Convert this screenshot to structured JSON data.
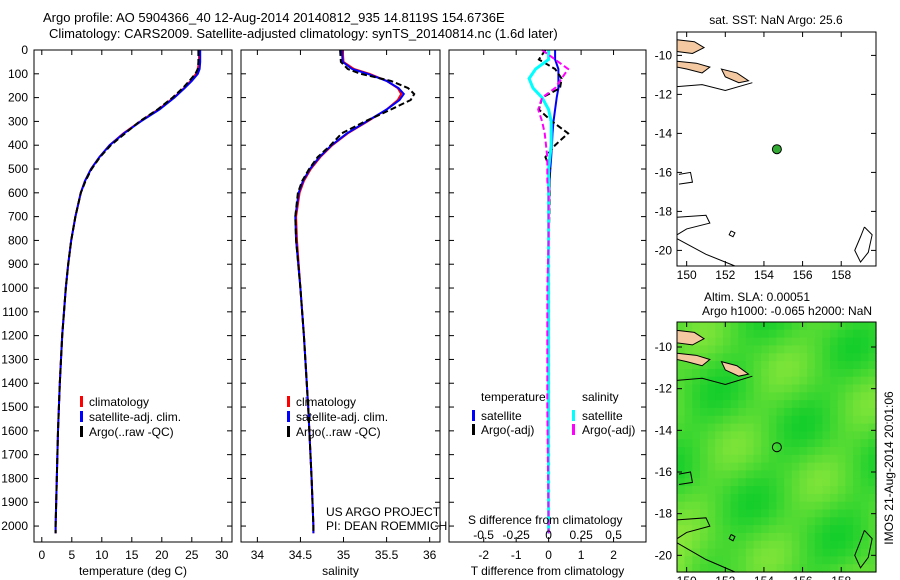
{
  "title": {
    "line1": "Argo profile: AO 5904366_40 12-Aug-2014 20140812_935 14.8119S 154.6736E",
    "line2": "Climatology: CARS2009. Satellite-adjusted climatology: synTS_20140814.nc (1.6d later)"
  },
  "colors": {
    "climatology": "#ff0000",
    "satellite_temp": "#0000ff",
    "argo": "#000000",
    "satellite_sal": "#00ffff",
    "argo_sal": "#ff00ff",
    "land": "#f4c8a0",
    "sla_low": "#0ccc2a",
    "sla_high": "#b8f040"
  },
  "chart_data": [
    {
      "type": "line",
      "id": "temperature",
      "xlabel": "temperature (deg C)",
      "ylabel": "depth",
      "xlim": [
        -1.3,
        31.7
      ],
      "ylim": [
        2067,
        0
      ],
      "xticks": [
        0,
        5,
        10,
        15,
        20,
        25,
        30
      ],
      "yticks": [
        0,
        100,
        200,
        300,
        400,
        500,
        600,
        700,
        800,
        900,
        1000,
        1100,
        1200,
        1300,
        1400,
        1500,
        1600,
        1700,
        1800,
        1900,
        2000
      ],
      "legend": [
        "climatology",
        "satellite-adj. clim.",
        "Argo(..raw -QC)"
      ],
      "depth": [
        0,
        50,
        80,
        100,
        130,
        160,
        200,
        250,
        300,
        350,
        400,
        450,
        500,
        550,
        600,
        700,
        800,
        900,
        1000,
        1200,
        1400,
        1600,
        1800,
        2000,
        2030
      ],
      "series": [
        {
          "name": "climatology",
          "values": [
            26.2,
            26.2,
            26.0,
            25.7,
            24.8,
            23.7,
            22.0,
            19.4,
            16.4,
            13.6,
            11.3,
            9.6,
            8.2,
            7.2,
            6.5,
            5.6,
            4.9,
            4.4,
            4.0,
            3.4,
            3.0,
            2.7,
            2.5,
            2.3,
            2.3
          ]
        },
        {
          "name": "satellite-adj. clim.",
          "values": [
            26.4,
            26.4,
            26.3,
            26.0,
            25.0,
            23.8,
            22.1,
            19.6,
            16.5,
            13.7,
            11.3,
            9.6,
            8.2,
            7.2,
            6.5,
            5.6,
            4.9,
            4.4,
            4.0,
            3.4,
            3.0,
            2.7,
            2.5,
            2.3,
            2.3
          ]
        },
        {
          "name": "Argo(..raw -QC)",
          "values": [
            26.1,
            26.1,
            26.0,
            25.6,
            24.6,
            23.5,
            21.8,
            19.3,
            16.3,
            13.9,
            11.5,
            9.7,
            8.3,
            7.3,
            6.5,
            5.6,
            4.9,
            4.4,
            4.0,
            3.4,
            3.0,
            2.7,
            2.5,
            2.3,
            2.3
          ]
        }
      ]
    },
    {
      "type": "line",
      "id": "salinity",
      "xlabel": "salinity",
      "xlim": [
        33.81,
        36.12
      ],
      "ylim": [
        2067,
        0
      ],
      "xticks": [
        34,
        34.5,
        35,
        35.5,
        36
      ],
      "xticklabels": [
        "34",
        "34.5",
        "35",
        "35.5",
        "36"
      ],
      "legend": [
        "climatology",
        "satellite-adj. clim.",
        "Argo(..raw -QC)"
      ],
      "annotation": [
        "US ARGO PROJECT",
        "PI: DEAN ROEMMICH"
      ],
      "depth": [
        0,
        50,
        80,
        100,
        130,
        160,
        185,
        210,
        250,
        300,
        350,
        400,
        450,
        500,
        550,
        600,
        700,
        800,
        1000,
        1200,
        1500,
        1800,
        2000,
        2030
      ],
      "series": [
        {
          "name": "climatology",
          "values": [
            34.99,
            35.0,
            35.12,
            35.3,
            35.5,
            35.63,
            35.67,
            35.63,
            35.5,
            35.28,
            35.05,
            34.87,
            34.73,
            34.62,
            34.54,
            34.49,
            34.45,
            34.46,
            34.5,
            34.54,
            34.59,
            34.63,
            34.65,
            34.65
          ]
        },
        {
          "name": "satellite-adj. clim.",
          "values": [
            34.98,
            34.99,
            35.1,
            35.28,
            35.5,
            35.64,
            35.7,
            35.65,
            35.5,
            35.27,
            35.04,
            34.86,
            34.72,
            34.61,
            34.53,
            34.48,
            34.44,
            34.45,
            34.5,
            34.54,
            34.59,
            34.63,
            34.65,
            34.65
          ]
        },
        {
          "name": "Argo(..raw -QC)",
          "values": [
            34.96,
            34.97,
            35.05,
            35.2,
            35.55,
            35.75,
            35.82,
            35.78,
            35.55,
            35.25,
            34.98,
            34.85,
            34.7,
            34.6,
            34.52,
            34.47,
            34.44,
            34.45,
            34.5,
            34.54,
            34.59,
            34.63,
            34.65,
            34.65
          ]
        }
      ]
    },
    {
      "type": "line",
      "id": "difference",
      "xlabel": "T difference from climatology",
      "xlabel2": "S difference from climatology",
      "xlim": [
        -3.07,
        3.0
      ],
      "ylim": [
        2067,
        0
      ],
      "xticks": [
        -2,
        -1,
        0,
        1,
        2
      ],
      "xticklabels": [
        "-2",
        "-1",
        "0",
        "1",
        "2"
      ],
      "sticks": [
        -0.5,
        -0.25,
        0,
        0.25,
        0.5
      ],
      "sticklabels": [
        "-0.5",
        "-0.25",
        "0",
        "0.25",
        "0.5"
      ],
      "legend": {
        "temperature_header": "temperature",
        "salinity_header": "salinity",
        "temp_items": [
          "satellite",
          "Argo(-adj)"
        ],
        "sal_items": [
          "satellite",
          "Argo(-adj)"
        ]
      },
      "depth": [
        0,
        40,
        80,
        120,
        160,
        200,
        250,
        300,
        350,
        400,
        450,
        500,
        550,
        600,
        700,
        800,
        1000,
        1500,
        2000,
        2030
      ],
      "series": [
        {
          "name": "temperature satellite",
          "values": [
            0.2,
            0.2,
            0.3,
            0.3,
            0.3,
            0.25,
            0.2,
            0.15,
            0.12,
            0.1,
            0.08,
            0.05,
            0.03,
            0.02,
            0.01,
            0.01,
            0.0,
            0.0,
            0.0,
            0.0
          ]
        },
        {
          "name": "temperature Argo(-adj)",
          "values": [
            -0.1,
            -0.3,
            0.2,
            0.4,
            0.35,
            -0.2,
            -0.3,
            0.1,
            0.6,
            0.2,
            -0.1,
            0.05,
            0.02,
            0.03,
            0.02,
            0.0,
            0.0,
            0.0,
            0.0,
            0.0
          ]
        },
        {
          "name": "salinity satellite",
          "values": [
            0.0,
            0.0,
            -0.1,
            -0.15,
            -0.12,
            -0.05,
            0.0,
            0.02,
            0.02,
            0.02,
            0.01,
            0.0,
            0.0,
            0.0,
            0.0,
            0.0,
            0.0,
            0.0,
            0.0,
            0.0
          ]
        },
        {
          "name": "salinity Argo(-adj)",
          "values": [
            -0.05,
            0.05,
            0.15,
            0.1,
            0.05,
            -0.05,
            -0.08,
            -0.05,
            -0.03,
            -0.02,
            -0.01,
            -0.01,
            -0.01,
            0.0,
            0.0,
            0.0,
            -0.01,
            -0.01,
            0.0,
            0.0
          ]
        }
      ]
    },
    {
      "type": "map",
      "id": "sst-map",
      "title": "sat. SST: NaN Argo: 25.6",
      "lonlim": [
        149.5,
        159.8
      ],
      "latlim": [
        -20.8,
        -8.8
      ],
      "xticks": [
        150,
        152,
        154,
        156,
        158
      ],
      "yticks": [
        -10,
        -12,
        -14,
        -16,
        -18,
        -20
      ],
      "argo_position": [
        154.67,
        -14.81
      ]
    },
    {
      "type": "heatmap",
      "id": "sla-map",
      "title": "Altim. SLA: 0.00051",
      "subtitle": "Argo h1000: -0.065 h2000: NaN",
      "lonlim": [
        149.5,
        159.8
      ],
      "latlim": [
        -20.8,
        -8.8
      ],
      "xticks": [
        150,
        152,
        154,
        156,
        158
      ],
      "yticks": [
        -10,
        -12,
        -14,
        -16,
        -18,
        -20
      ],
      "argo_position": [
        154.67,
        -14.81
      ]
    }
  ],
  "footer": {
    "stamp": "IMOS 21-Aug-2014 20:01:06"
  }
}
